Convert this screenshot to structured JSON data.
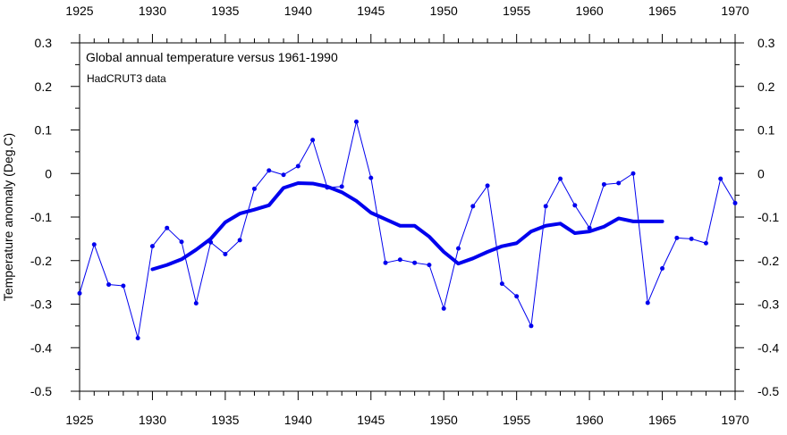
{
  "chart_data": {
    "type": "line",
    "title": "Global annual temperature versus 1961-1990",
    "subtitle": "HadCRUT3 data",
    "xlabel": "",
    "ylabel": "Temperature anomaly (Deg.C)",
    "xlim": [
      1925,
      1970
    ],
    "ylim": [
      -0.5,
      0.3
    ],
    "x_ticks": [
      "1925",
      "1930",
      "1935",
      "1940",
      "1945",
      "1950",
      "1955",
      "1960",
      "1965",
      "1970"
    ],
    "y_ticks": [
      "0.3",
      "0.2",
      "0.1",
      "0",
      "-0.1",
      "-0.2",
      "-0.3",
      "-0.4",
      "-0.5"
    ],
    "grid": false,
    "colors": {
      "series": "#0000ee"
    },
    "series": [
      {
        "style": "thin-line-with-markers",
        "x": [
          1925,
          1926,
          1927,
          1928,
          1929,
          1930,
          1931,
          1932,
          1933,
          1934,
          1935,
          1936,
          1937,
          1938,
          1939,
          1940,
          1941,
          1942,
          1943,
          1944,
          1945,
          1946,
          1947,
          1948,
          1949,
          1950,
          1951,
          1952,
          1953,
          1954,
          1955,
          1956,
          1957,
          1958,
          1959,
          1960,
          1961,
          1962,
          1963,
          1964,
          1965,
          1966,
          1967,
          1968,
          1969,
          1970
        ],
        "values": [
          -0.275,
          -0.163,
          -0.255,
          -0.258,
          -0.378,
          -0.167,
          -0.125,
          -0.157,
          -0.298,
          -0.158,
          -0.185,
          -0.153,
          -0.035,
          0.007,
          -0.003,
          0.017,
          0.077,
          -0.032,
          -0.03,
          0.119,
          -0.01,
          -0.205,
          -0.198,
          -0.205,
          -0.21,
          -0.31,
          -0.172,
          -0.075,
          -0.028,
          -0.253,
          -0.282,
          -0.35,
          -0.075,
          -0.012,
          -0.073,
          -0.125,
          -0.025,
          -0.022,
          0.0,
          -0.297,
          -0.218,
          -0.148,
          -0.15,
          -0.16,
          -0.012,
          -0.068
        ]
      },
      {
        "style": "thick-smoothed-line",
        "x": [
          1930,
          1931,
          1932,
          1933,
          1934,
          1935,
          1936,
          1937,
          1938,
          1939,
          1940,
          1941,
          1942,
          1943,
          1944,
          1945,
          1946,
          1947,
          1948,
          1949,
          1950,
          1951,
          1952,
          1953,
          1954,
          1955,
          1956,
          1957,
          1958,
          1959,
          1960,
          1961,
          1962,
          1963,
          1964,
          1965
        ],
        "values": [
          -0.22,
          -0.21,
          -0.197,
          -0.175,
          -0.15,
          -0.112,
          -0.092,
          -0.083,
          -0.073,
          -0.033,
          -0.022,
          -0.023,
          -0.03,
          -0.043,
          -0.063,
          -0.09,
          -0.105,
          -0.12,
          -0.12,
          -0.145,
          -0.18,
          -0.207,
          -0.195,
          -0.18,
          -0.167,
          -0.16,
          -0.133,
          -0.12,
          -0.115,
          -0.137,
          -0.133,
          -0.122,
          -0.103,
          -0.11,
          -0.11,
          -0.11
        ]
      }
    ]
  }
}
